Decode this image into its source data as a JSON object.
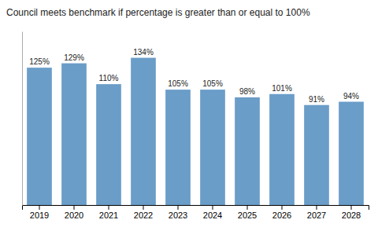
{
  "chart_data": {
    "type": "bar",
    "title": "Council meets benchmark if percentage is greater than or equal to 100%",
    "categories": [
      "2019",
      "2020",
      "2021",
      "2022",
      "2023",
      "2024",
      "2025",
      "2026",
      "2027",
      "2028"
    ],
    "values": [
      125,
      129,
      110,
      134,
      105,
      105,
      98,
      101,
      91,
      94
    ],
    "value_labels": [
      "125%",
      "129%",
      "110%",
      "134%",
      "105%",
      "105%",
      "98%",
      "101%",
      "91%",
      "94%"
    ],
    "color": "#6A9DC8",
    "ylim": [
      0,
      158
    ],
    "data_labels": true,
    "tick_labels": "x"
  }
}
